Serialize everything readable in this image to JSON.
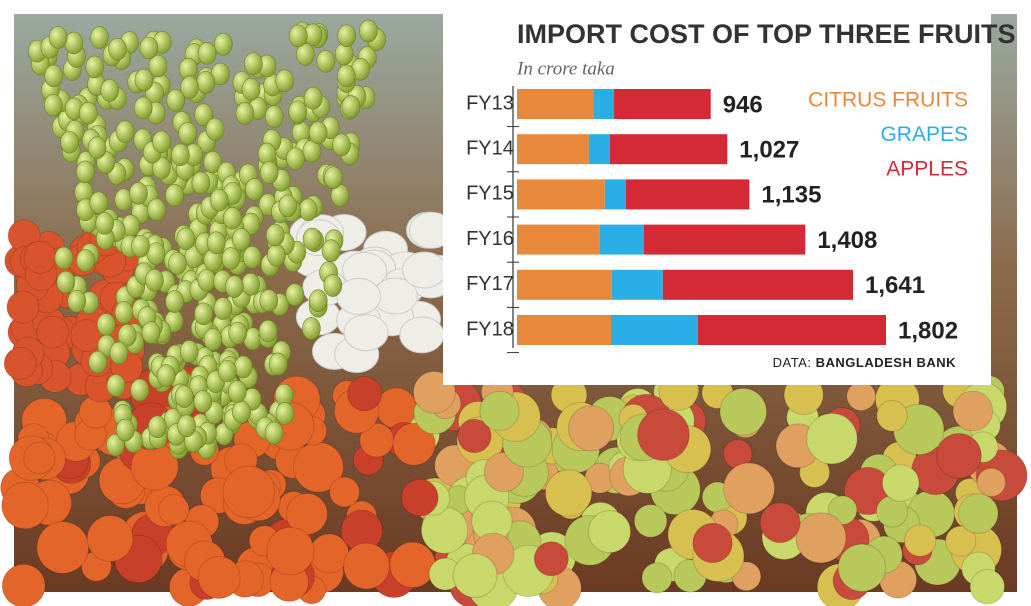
{
  "chart_data": {
    "type": "stacked-bar",
    "title": "IMPORT COST OF TOP THREE FRUITS",
    "subtitle": "In crore taka",
    "categories": [
      "FY13",
      "FY14",
      "FY15",
      "FY16",
      "FY17",
      "FY18"
    ],
    "orientation": "horizontal",
    "series": [
      {
        "name": "CITRUS FRUITS",
        "color": "#e8883a",
        "values": [
          376,
          351,
          429,
          405,
          463,
          459
        ]
      },
      {
        "name": "GRAPES",
        "color": "#29aee6",
        "values": [
          98,
          102,
          102,
          215,
          249,
          424
        ]
      },
      {
        "name": "APPLES",
        "color": "#d42a35",
        "values": [
          472,
          574,
          604,
          788,
          929,
          919
        ]
      }
    ],
    "totals": [
      946,
      1027,
      1135,
      1408,
      1641,
      1802
    ],
    "total_labels": [
      "946",
      "1,027",
      "1,135",
      "1,408",
      "1,641",
      "1,802"
    ],
    "source_label": "DATA:",
    "source": "BANGLADESH BANK"
  }
}
